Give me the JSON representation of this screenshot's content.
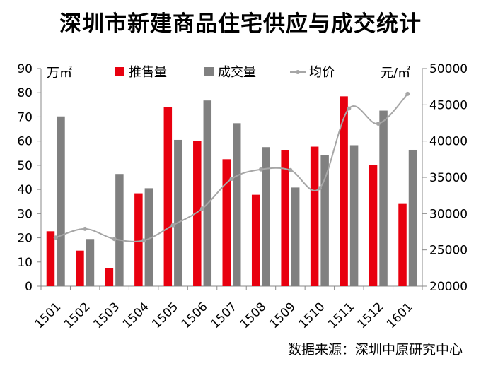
{
  "title": "深圳市新建商品住宅供应与成交统计",
  "source": "数据来源：深圳中原研究中心",
  "chart_data": {
    "type": "bar",
    "categories": [
      "1501",
      "1502",
      "1503",
      "1504",
      "1505",
      "1506",
      "1507",
      "1508",
      "1509",
      "1510",
      "1511",
      "1512",
      "1601"
    ],
    "series": [
      {
        "name": "推售量",
        "type": "bar",
        "axis": "left",
        "color": "#e8000f",
        "values": [
          22.7,
          14.7,
          7.4,
          38.4,
          74.1,
          60.0,
          52.5,
          37.8,
          56.1,
          57.7,
          78.5,
          50.1,
          34.0
        ]
      },
      {
        "name": "成交量",
        "type": "bar",
        "axis": "left",
        "color": "#808080",
        "values": [
          70.2,
          19.5,
          46.4,
          40.5,
          60.5,
          76.8,
          67.4,
          57.5,
          40.8,
          54.2,
          58.3,
          72.6,
          56.4
        ]
      },
      {
        "name": "均价",
        "type": "line",
        "axis": "right",
        "color": "#a6a6a6",
        "values": [
          26700,
          27900,
          26500,
          26300,
          28400,
          30700,
          34800,
          36100,
          36000,
          33500,
          44500,
          42400,
          46500
        ]
      }
    ],
    "y_left": {
      "unit": "万㎡",
      "min": 0,
      "max": 90,
      "ticks": [
        0,
        10,
        20,
        30,
        40,
        50,
        60,
        70,
        80,
        90
      ]
    },
    "y_right": {
      "unit": "元/㎡",
      "min": 20000,
      "max": 50000,
      "ticks": [
        20000,
        25000,
        30000,
        35000,
        40000,
        45000,
        50000
      ]
    },
    "legend": {
      "position": "top"
    },
    "grid": false
  }
}
